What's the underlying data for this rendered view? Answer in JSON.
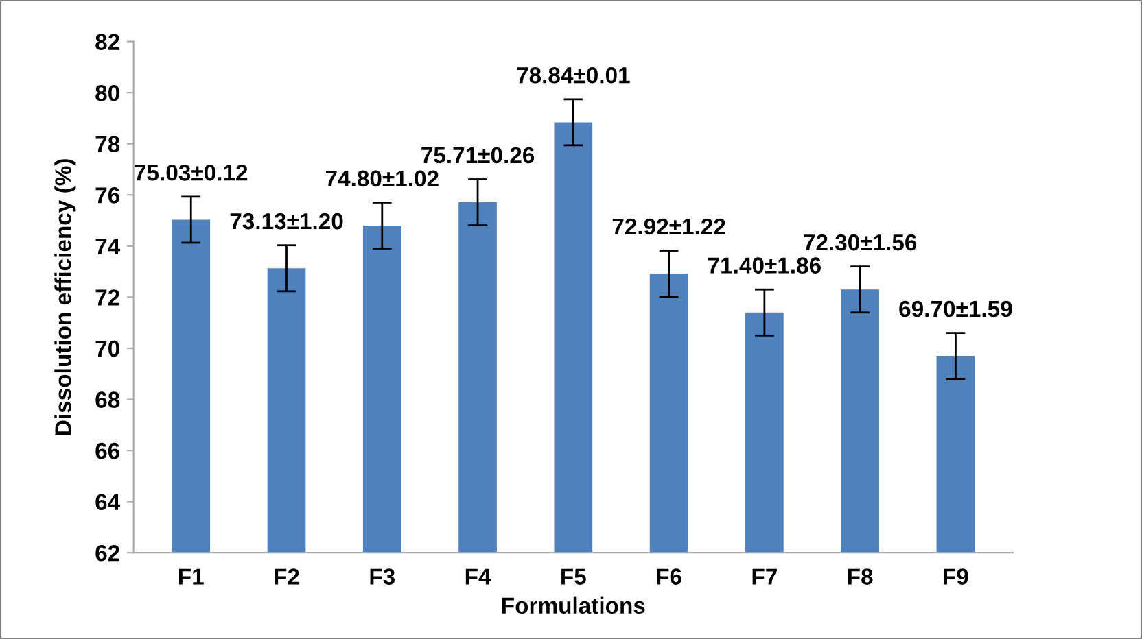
{
  "chart_data": {
    "type": "bar",
    "xlabel": "Formulations",
    "ylabel": "Dissolution efficiency (%)",
    "categories": [
      "F1",
      "F2",
      "F3",
      "F4",
      "F5",
      "F6",
      "F7",
      "F8",
      "F9"
    ],
    "values": [
      75.03,
      73.13,
      74.8,
      75.71,
      78.84,
      72.92,
      71.4,
      72.3,
      69.7
    ],
    "errors": [
      0.9,
      0.9,
      0.9,
      0.9,
      0.9,
      0.9,
      0.9,
      0.9,
      0.9
    ],
    "value_labels": [
      "75.03±0.12",
      "73.13±1.20",
      "74.80±1.02",
      "75.71±0.26",
      "78.84±0.01",
      "72.92±1.22",
      "71.40±1.86",
      "72.30±1.56",
      "69.70±1.59"
    ],
    "color": "#4f81bd",
    "ylim": [
      62,
      82
    ],
    "yticks": [
      62,
      64,
      66,
      68,
      70,
      72,
      74,
      76,
      78,
      80,
      82
    ],
    "grid": false,
    "legend": false
  }
}
